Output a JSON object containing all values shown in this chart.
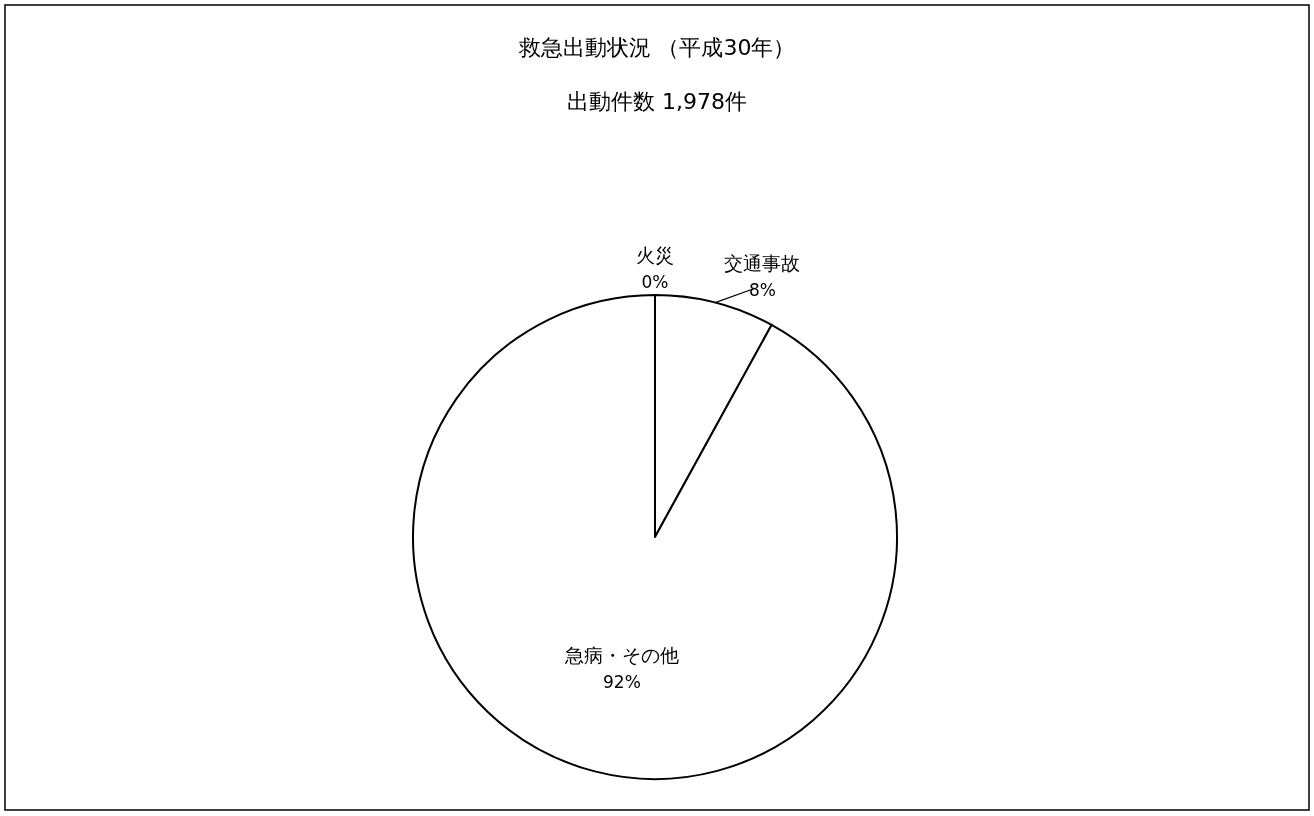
{
  "chart_data": {
    "type": "pie",
    "title": "救急出動状況 （平成30年）",
    "subtitle": "出動件数 1,978件",
    "categories": [
      "火災",
      "交通事故",
      "急病・その他"
    ],
    "values": [
      0,
      8,
      92
    ],
    "colors": [
      "#ffffff",
      "#ffffff",
      "#ffffff"
    ],
    "value_labels": [
      "0%",
      "8%",
      "92%"
    ]
  }
}
